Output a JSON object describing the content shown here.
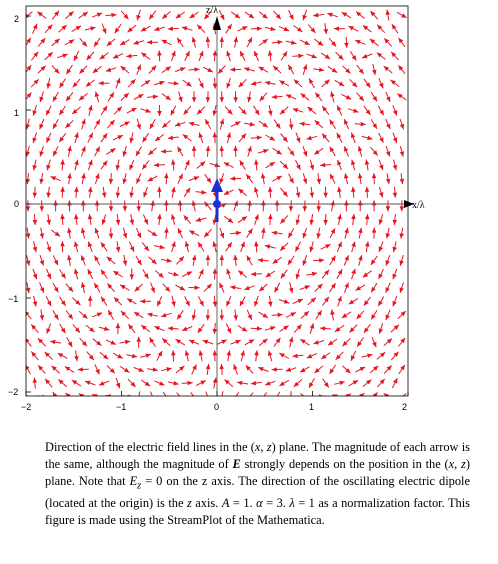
{
  "figure": {
    "x_axis_label": "x/λ",
    "z_axis_label": "z/λ",
    "x_ticks": [
      "−2",
      "−1",
      "0",
      "1",
      "2"
    ],
    "z_ticks": [
      "2",
      "1",
      "0",
      "−1",
      "−2"
    ],
    "x_range": [
      -2,
      2
    ],
    "z_range": [
      -2.1,
      2.1
    ],
    "arrow_color": "#e8141e",
    "dipole_color": "#1f2fd0",
    "A": 1,
    "alpha": 3,
    "lambda": 1
  },
  "caption": {
    "p1": "Direction of the electric field lines in the (",
    "p2": "x",
    "p3": ", ",
    "p4": "z",
    "p5": ") plane. The magnitude of each arrow is the same, although the magnitude of ",
    "p6": "E",
    "p7": " strongly depends on the position in the (",
    "p8": "x",
    "p9": ", ",
    "p10": "z",
    "p11": ") plane. Note that ",
    "p12": "E",
    "p12sub": "z",
    "p13": " = 0 on the z axis. The direction of the oscillating electric dipole (located at the origin) is the ",
    "p14": "z",
    "p15": " axis. ",
    "p16": "A",
    "p17": " = 1. ",
    "p18": "α",
    "p19": " = 3. ",
    "p20": "λ",
    "p21": " = 1 as a normalization factor. This figure is made using the StreamPlot of the Mathematica."
  }
}
